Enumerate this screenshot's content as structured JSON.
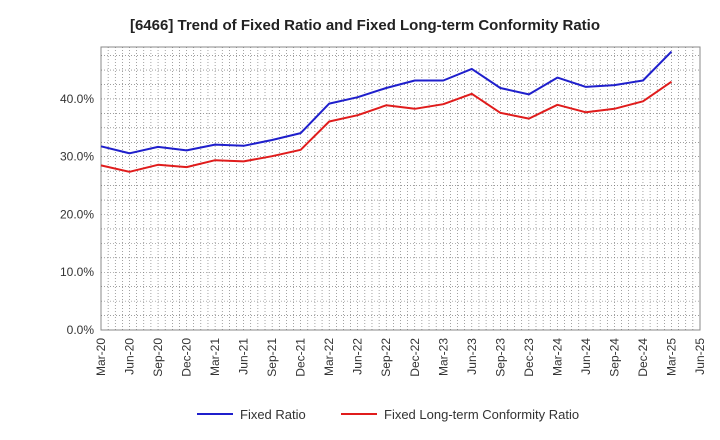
{
  "chart_data": {
    "type": "line",
    "title": "[6466]  Trend of Fixed Ratio and Fixed Long-term Conformity Ratio",
    "xlabel": "",
    "ylabel": "",
    "categories": [
      "Mar-20",
      "Jun-20",
      "Sep-20",
      "Dec-20",
      "Mar-21",
      "Jun-21",
      "Sep-21",
      "Dec-21",
      "Mar-22",
      "Jun-22",
      "Sep-22",
      "Dec-22",
      "Mar-23",
      "Jun-23",
      "Sep-23",
      "Dec-23",
      "Mar-24",
      "Jun-24",
      "Sep-24",
      "Dec-24",
      "Mar-25",
      "Jun-25"
    ],
    "ylim": [
      0,
      49
    ],
    "yticks": [
      0,
      10,
      20,
      30,
      40
    ],
    "ytick_labels": [
      "0.0%",
      "10.0%",
      "20.0%",
      "30.0%",
      "40.0%"
    ],
    "grid": true,
    "legend_position": "bottom",
    "series": [
      {
        "name": "Fixed Ratio",
        "color": "#1f1fcc",
        "values": [
          31.8,
          30.6,
          31.7,
          31.1,
          32.1,
          31.9,
          32.9,
          34.1,
          39.2,
          40.3,
          41.9,
          43.2,
          43.2,
          45.2,
          41.9,
          40.8,
          43.7,
          42.1,
          42.4,
          43.2,
          48.2,
          null
        ]
      },
      {
        "name": "Fixed Long-term Conformity Ratio",
        "color": "#e01c1c",
        "values": [
          28.5,
          27.4,
          28.6,
          28.2,
          29.4,
          29.2,
          30.1,
          31.2,
          36.1,
          37.2,
          38.9,
          38.3,
          39.1,
          40.9,
          37.6,
          36.6,
          39.0,
          37.7,
          38.3,
          39.6,
          43.0,
          null
        ]
      }
    ]
  }
}
